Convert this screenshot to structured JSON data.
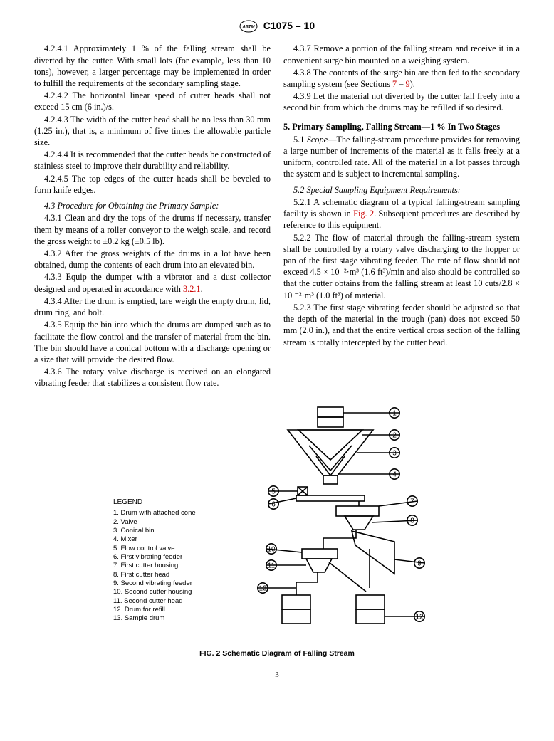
{
  "header": {
    "designation": "C1075 – 10"
  },
  "left": {
    "p4241": "4.2.4.1 Approximately 1 % of the falling stream shall be diverted by the cutter. With small lots (for example, less than 10 tons), however, a larger percentage may be implemented in order to fulfill the requirements of the secondary sampling stage.",
    "p4242": "4.2.4.2 The horizontal linear speed of cutter heads shall not exceed 15 cm (6 in.)/s.",
    "p4243": "4.2.4.3 The width of the cutter head shall be no less than 30 mm (1.25 in.), that is, a minimum of five times the allowable particle size.",
    "p4244": "4.2.4.4 It is recommended that the cutter heads be constructed of stainless steel to improve their durability and reliability.",
    "p4245": "4.2.4.5 The top edges of the cutter heads shall be beveled to form knife edges.",
    "p43h": "4.3 Procedure for Obtaining the Primary Sample:",
    "p431": "4.3.1 Clean and dry the tops of the drums if necessary, transfer them by means of a roller conveyor to the weigh scale, and record the gross weight to ±0.2 kg (±0.5 lb).",
    "p432": "4.3.2 After the gross weights of the drums in a lot have been obtained, dump the contents of each drum into an elevated bin.",
    "p433a": "4.3.3 Equip the dumper with a vibrator and a dust collector designed and operated in accordance with ",
    "p433link": "3.2.1",
    "p433b": ".",
    "p434": "4.3.4 After the drum is emptied, tare weigh the empty drum, lid, drum ring, and bolt.",
    "p435": "4.3.5 Equip the bin into which the drums are dumped such as to facilitate the flow control and the transfer of material from the bin. The bin should have a conical bottom with a discharge opening or a size that will provide the desired flow.",
    "p436": "4.3.6 The rotary valve discharge is received on an elongated vibrating feeder that stabilizes a consistent flow rate."
  },
  "right": {
    "p437": "4.3.7 Remove a portion of the falling stream and receive it in a convenient surge bin mounted on a weighing system.",
    "p438a": "4.3.8 The contents of the surge bin are then fed to the secondary sampling system (see Sections ",
    "p438l1": "7",
    "p438mid": " – ",
    "p438l2": "9",
    "p438b": ").",
    "p439": "4.3.9 Let the material not diverted by the cutter fall freely into a second bin from which the drums may be refilled if so desired.",
    "s5title": "5. Primary Sampling, Falling Stream—1 % In Two Stages",
    "p51_label": "5.1 ",
    "p51_scope": "Scope",
    "p51_body": "—The falling-stream procedure provides for removing a large number of increments of the material as it falls freely at a uniform, controlled rate. All of the material in a lot passes through the system and is subject to incremental sampling.",
    "p52h": "5.2 Special Sampling Equipment Requirements:",
    "p521a": "5.2.1 A schematic diagram of a typical falling-stream sampling facility is shown in ",
    "p521link": "Fig. 2",
    "p521b": ". Subsequent procedures are described by reference to this equipment.",
    "p522": "5.2.2 The flow of material through the falling-stream system shall be controlled by a rotary valve discharging to the hopper or pan of the first stage vibrating feeder. The rate of flow should not exceed 4.5 × 10⁻²·m³ (1.6 ft³)/min and also should be controlled so that the cutter obtains from the falling stream at least 10 cuts/2.8 × 10 ⁻²·m³ (1.0 ft³) of material.",
    "p523": "5.2.3 The first stage vibrating feeder should be adjusted so that the depth of the material in the trough (pan) does not exceed 50 mm (2.0 in.), and that the entire vertical cross section of the falling stream is totally intercepted by the cutter head."
  },
  "legend": {
    "title": "LEGEND",
    "items": [
      "1. Drum with attached cone",
      "2. Valve",
      "3. Conical bin",
      "4. Mixer",
      "5. Flow control valve",
      "6. First vibrating feeder",
      "7. First cutter housing",
      "8. First cutter head",
      "9. Second vibrating feeder",
      "10. Second cutter housing",
      "11. Second cutter head",
      "12. Drum for refill",
      "13. Sample drum"
    ]
  },
  "figure": {
    "caption": "FIG. 2 Schematic Diagram of Falling Stream",
    "callouts": [
      "1",
      "2",
      "3",
      "4",
      "5",
      "6",
      "7",
      "8",
      "9",
      "10",
      "11",
      "12",
      "13"
    ],
    "stroke": "#000",
    "stroke_width": 1.6,
    "circle_r": 7.2
  },
  "page_number": "3"
}
